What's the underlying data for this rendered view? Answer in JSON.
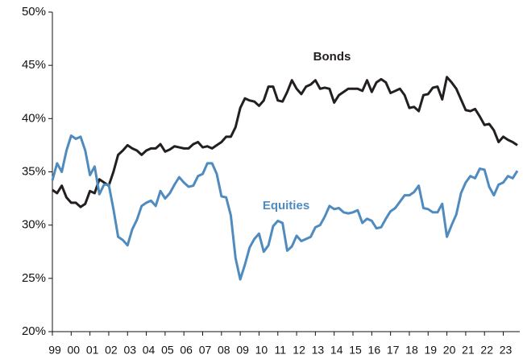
{
  "chart_data": {
    "type": "line",
    "categories": [
      "99",
      null,
      null,
      null,
      "00",
      null,
      null,
      null,
      "01",
      null,
      null,
      null,
      "02",
      null,
      null,
      null,
      "03",
      null,
      null,
      null,
      "04",
      null,
      null,
      null,
      "05",
      null,
      null,
      null,
      "06",
      null,
      null,
      null,
      "07",
      null,
      null,
      null,
      "08",
      null,
      null,
      null,
      "09",
      null,
      null,
      null,
      "10",
      null,
      null,
      null,
      "11",
      null,
      null,
      null,
      "12",
      null,
      null,
      null,
      "13",
      null,
      null,
      null,
      "14",
      null,
      null,
      null,
      "15",
      null,
      null,
      null,
      "16",
      null,
      null,
      null,
      "17",
      null,
      null,
      null,
      "18",
      null,
      null,
      null,
      "19",
      null,
      null,
      null,
      "20",
      null,
      null,
      null,
      "21",
      null,
      null,
      null,
      "22",
      null,
      null,
      null,
      "23",
      null,
      null,
      null
    ],
    "series": [
      {
        "name": "Bonds",
        "color": "#231f20",
        "values": [
          33.3,
          33.0,
          33.7,
          32.6,
          32.1,
          32.1,
          31.7,
          32.0,
          33.2,
          33.0,
          34.3,
          34.0,
          33.7,
          35.0,
          36.6,
          37.0,
          37.5,
          37.2,
          37.0,
          36.6,
          37.0,
          37.2,
          37.2,
          37.6,
          36.9,
          37.1,
          37.4,
          37.3,
          37.2,
          37.2,
          37.6,
          37.8,
          37.3,
          37.4,
          37.2,
          37.5,
          37.8,
          38.3,
          38.3,
          39.2,
          41.0,
          41.9,
          41.7,
          41.6,
          41.2,
          41.7,
          43.0,
          43.0,
          41.7,
          41.6,
          42.5,
          43.6,
          42.8,
          42.3,
          43.0,
          43.2,
          43.6,
          42.8,
          42.9,
          42.8,
          41.5,
          42.2,
          42.5,
          42.8,
          42.8,
          42.8,
          42.6,
          43.6,
          42.5,
          43.4,
          43.7,
          43.4,
          42.4,
          42.6,
          42.8,
          42.2,
          41.0,
          41.1,
          40.7,
          42.2,
          42.3,
          42.9,
          43.0,
          41.8,
          43.9,
          43.4,
          42.8,
          41.8,
          40.8,
          40.7,
          40.9,
          40.2,
          39.4,
          39.5,
          38.9,
          37.8,
          38.3,
          38.0,
          37.8,
          37.5
        ]
      },
      {
        "name": "Equities",
        "color": "#4f8bbf",
        "values": [
          34.2,
          35.8,
          35.0,
          37.0,
          38.4,
          38.1,
          38.3,
          37.0,
          34.7,
          35.5,
          32.9,
          33.8,
          33.8,
          31.5,
          28.9,
          28.6,
          28.1,
          29.6,
          30.5,
          31.8,
          32.1,
          32.3,
          31.8,
          33.2,
          32.5,
          33.0,
          33.8,
          34.5,
          34.0,
          33.6,
          33.7,
          34.6,
          34.8,
          35.8,
          35.8,
          34.8,
          32.7,
          32.6,
          30.9,
          26.9,
          24.9,
          26.3,
          27.9,
          28.7,
          29.2,
          27.5,
          28.1,
          29.9,
          30.4,
          30.2,
          27.6,
          28.0,
          29.0,
          28.5,
          28.7,
          28.9,
          29.8,
          30.0,
          30.8,
          31.8,
          31.5,
          31.6,
          31.2,
          31.1,
          31.2,
          31.4,
          30.2,
          30.6,
          30.4,
          29.7,
          29.8,
          30.6,
          31.3,
          31.6,
          32.2,
          32.8,
          32.8,
          33.1,
          33.7,
          31.6,
          31.5,
          31.2,
          31.2,
          32.0,
          28.9,
          30.0,
          31.0,
          33.0,
          34.0,
          34.6,
          34.4,
          35.3,
          35.2,
          33.6,
          32.8,
          33.8,
          34.0,
          34.6,
          34.4,
          35.1
        ]
      }
    ],
    "ylim": [
      20,
      50
    ],
    "yticks": [
      {
        "value": 20,
        "label": "20%"
      },
      {
        "value": 25,
        "label": "25%"
      },
      {
        "value": 30,
        "label": "30%"
      },
      {
        "value": 35,
        "label": "35%"
      },
      {
        "value": 40,
        "label": "40%"
      },
      {
        "value": 45,
        "label": "45%"
      },
      {
        "value": 50,
        "label": "50%"
      }
    ]
  }
}
